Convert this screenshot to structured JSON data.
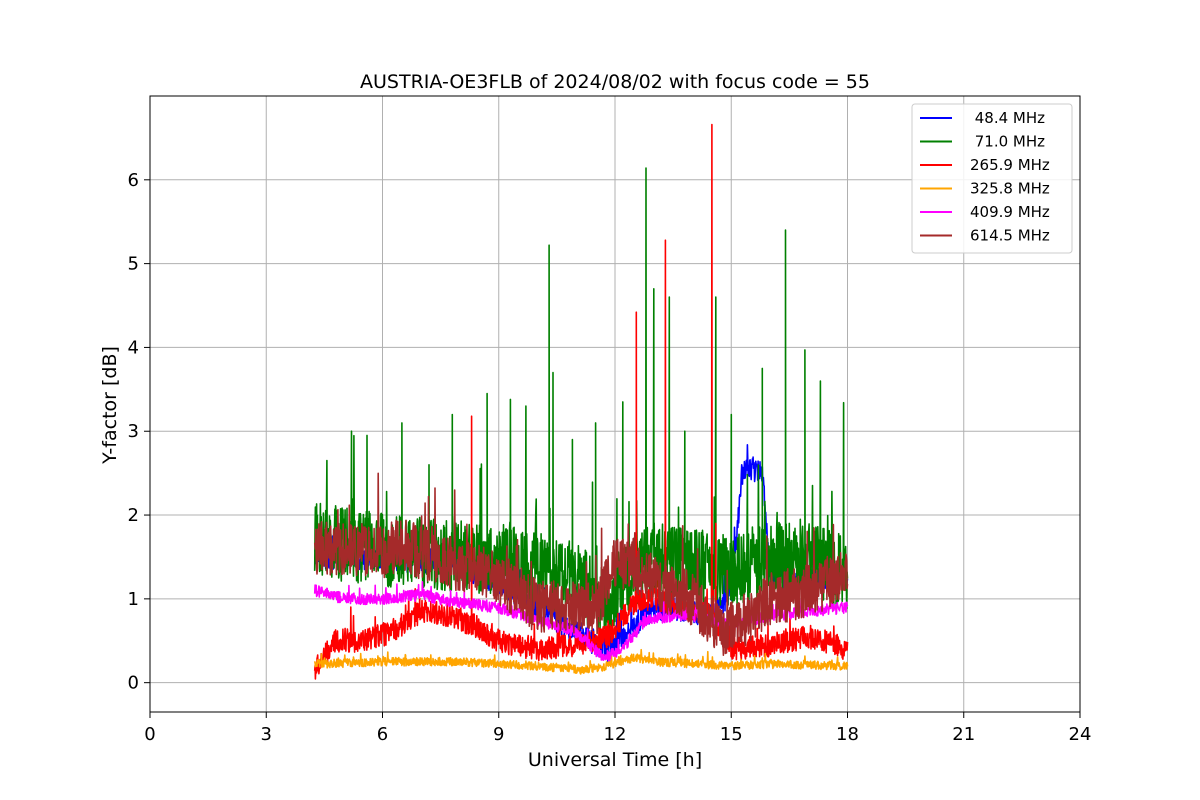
{
  "chart_data": {
    "type": "line",
    "title": "AUSTRIA-OE3FLB of 2024/08/02 with focus code = 55",
    "xlabel": "Universal Time [h]",
    "ylabel": "Y-factor [dB]",
    "xlim": [
      0,
      24
    ],
    "ylim": [
      -0.35,
      7.0
    ],
    "xticks": [
      0,
      3,
      6,
      9,
      12,
      15,
      18,
      21,
      24
    ],
    "yticks": [
      0,
      1,
      2,
      3,
      4,
      5,
      6
    ],
    "grid": true,
    "legend_position": "top-right",
    "series": [
      {
        "name": " 48.4 MHz",
        "color": "#0000ff",
        "x_range": [
          4.25,
          18.0
        ],
        "profile": [
          [
            4.25,
            1.5
          ],
          [
            5,
            1.5
          ],
          [
            6,
            1.5
          ],
          [
            7,
            1.45
          ],
          [
            8,
            1.4
          ],
          [
            9,
            1.2
          ],
          [
            10,
            0.9
          ],
          [
            11,
            0.6
          ],
          [
            11.8,
            0.4
          ],
          [
            12.3,
            0.6
          ],
          [
            13,
            0.9
          ],
          [
            14,
            0.85
          ],
          [
            14.5,
            0.8
          ],
          [
            15,
            1.1
          ],
          [
            15.3,
            2.55
          ],
          [
            15.8,
            2.55
          ],
          [
            16,
            1.3
          ],
          [
            17,
            1.2
          ],
          [
            18,
            1.3
          ]
        ],
        "noise": 0.15,
        "spikes": []
      },
      {
        "name": " 71.0 MHz",
        "color": "#008000",
        "x_range": [
          4.25,
          18.0
        ],
        "profile": [
          [
            4.25,
            1.7
          ],
          [
            5,
            1.65
          ],
          [
            6,
            1.6
          ],
          [
            7,
            1.55
          ],
          [
            8,
            1.5
          ],
          [
            9,
            1.45
          ],
          [
            10,
            1.35
          ],
          [
            11,
            1.25
          ],
          [
            11.8,
            0.9
          ],
          [
            12.3,
            1.3
          ],
          [
            13,
            1.5
          ],
          [
            14,
            1.4
          ],
          [
            15,
            1.3
          ],
          [
            16,
            1.5
          ],
          [
            17,
            1.45
          ],
          [
            18,
            1.3
          ]
        ],
        "noise": 0.45,
        "spikes": [
          [
            5.2,
            3.0
          ],
          [
            5.6,
            2.95
          ],
          [
            6.5,
            3.1
          ],
          [
            7.2,
            2.6
          ],
          [
            7.8,
            3.2
          ],
          [
            8.7,
            3.45
          ],
          [
            9.3,
            3.38
          ],
          [
            9.7,
            3.3
          ],
          [
            10.3,
            5.22
          ],
          [
            10.4,
            3.7
          ],
          [
            10.9,
            2.9
          ],
          [
            11.5,
            3.1
          ],
          [
            12.2,
            3.35
          ],
          [
            12.8,
            6.14
          ],
          [
            13.0,
            4.7
          ],
          [
            13.4,
            4.6
          ],
          [
            13.8,
            3.0
          ],
          [
            14.6,
            4.6
          ],
          [
            15.0,
            3.2
          ],
          [
            15.8,
            3.75
          ],
          [
            16.4,
            5.4
          ],
          [
            16.9,
            3.97
          ],
          [
            17.3,
            3.6
          ],
          [
            17.9,
            3.34
          ]
        ]
      },
      {
        "name": "265.9 MHz",
        "color": "#ff0000",
        "x_range": [
          4.25,
          18.0
        ],
        "profile": [
          [
            4.25,
            0.15
          ],
          [
            4.8,
            0.5
          ],
          [
            5.5,
            0.5
          ],
          [
            6.2,
            0.6
          ],
          [
            7,
            0.85
          ],
          [
            7.8,
            0.8
          ],
          [
            8.5,
            0.65
          ],
          [
            9,
            0.5
          ],
          [
            10,
            0.4
          ],
          [
            11,
            0.45
          ],
          [
            11.8,
            0.55
          ],
          [
            12.5,
            0.95
          ],
          [
            13,
            1.0
          ],
          [
            14,
            0.85
          ],
          [
            14.5,
            0.8
          ],
          [
            15,
            0.4
          ],
          [
            16,
            0.45
          ],
          [
            17,
            0.55
          ],
          [
            18,
            0.4
          ]
        ],
        "noise": 0.14,
        "spikes": [
          [
            8.3,
            3.18
          ],
          [
            12.55,
            4.42
          ],
          [
            13.3,
            5.28
          ],
          [
            14.5,
            6.66
          ],
          [
            14.6,
            1.9
          ]
        ]
      },
      {
        "name": "325.8 MHz",
        "color": "#ffa500",
        "x_range": [
          4.25,
          18.0
        ],
        "profile": [
          [
            4.25,
            0.22
          ],
          [
            6,
            0.25
          ],
          [
            8,
            0.25
          ],
          [
            10,
            0.2
          ],
          [
            11.2,
            0.15
          ],
          [
            11.8,
            0.2
          ],
          [
            12.5,
            0.3
          ],
          [
            13,
            0.25
          ],
          [
            15,
            0.2
          ],
          [
            16,
            0.22
          ],
          [
            18,
            0.2
          ]
        ],
        "noise": 0.05,
        "spikes": []
      },
      {
        "name": "409.9 MHz",
        "color": "#ff00ff",
        "x_range": [
          4.25,
          18.0
        ],
        "profile": [
          [
            4.25,
            1.1
          ],
          [
            5,
            1.0
          ],
          [
            6,
            1.0
          ],
          [
            7,
            1.05
          ],
          [
            8,
            0.95
          ],
          [
            9,
            0.9
          ],
          [
            10,
            0.75
          ],
          [
            11,
            0.6
          ],
          [
            11.7,
            0.3
          ],
          [
            12.2,
            0.4
          ],
          [
            12.8,
            0.75
          ],
          [
            13.5,
            0.8
          ],
          [
            14,
            0.8
          ],
          [
            15,
            0.7
          ],
          [
            16,
            0.8
          ],
          [
            17,
            0.85
          ],
          [
            18,
            0.9
          ]
        ],
        "noise": 0.07,
        "spikes": []
      },
      {
        "name": "614.5 MHz",
        "color": "#a52a2a",
        "x_range": [
          4.25,
          18.0
        ],
        "profile": [
          [
            4.25,
            1.6
          ],
          [
            5,
            1.6
          ],
          [
            6,
            1.55
          ],
          [
            6.5,
            1.65
          ],
          [
            7,
            1.55
          ],
          [
            8,
            1.4
          ],
          [
            9,
            1.25
          ],
          [
            10,
            0.9
          ],
          [
            11,
            0.9
          ],
          [
            11.5,
            0.85
          ],
          [
            12,
            1.45
          ],
          [
            12.5,
            1.4
          ],
          [
            13,
            1.2
          ],
          [
            14,
            1.0
          ],
          [
            14.8,
            0.6
          ],
          [
            15.5,
            0.8
          ],
          [
            16,
            1.0
          ],
          [
            17,
            1.1
          ],
          [
            18,
            1.3
          ]
        ],
        "noise": 0.32,
        "spikes": []
      }
    ]
  }
}
